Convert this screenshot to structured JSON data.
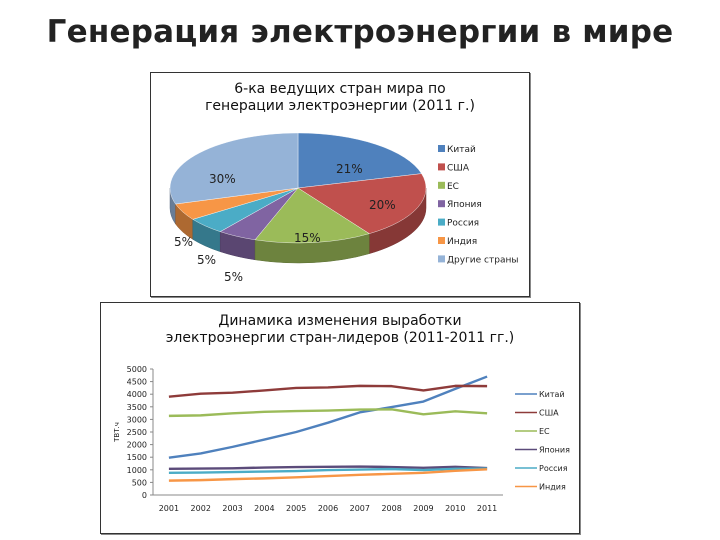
{
  "page": {
    "title": "Генерация электроэнергии в мире"
  },
  "chart_data": [
    {
      "type": "pie",
      "title_lines": [
        "6-ка ведущих стран мира по",
        "генерации электроэнергии (2011 г.)"
      ],
      "categories": [
        "Китай",
        "США",
        "ЕС",
        "Япония",
        "Россия",
        "Индия",
        "Другие страны"
      ],
      "values": [
        21,
        20,
        15,
        5,
        5,
        5,
        30
      ],
      "data_labels": [
        "21%",
        "20%",
        "15%",
        "5%",
        "5%",
        "5%",
        "30%"
      ],
      "colors": [
        "#4f81bd",
        "#c0504d",
        "#9bbb59",
        "#8064a2",
        "#4bacc6",
        "#f79646",
        "#95b3d7"
      ],
      "legend_position": "right",
      "style": "3d"
    },
    {
      "type": "line",
      "title_lines": [
        "Динамика изменения выработки",
        "электроэнергии  стран-лидеров (2011-2011 гг.)"
      ],
      "ylabel": "ТВТ.ч",
      "x": [
        "2001",
        "2002",
        "2003",
        "2004",
        "2005",
        "2006",
        "2007",
        "2008",
        "2009",
        "2010",
        "2011"
      ],
      "ylim": [
        0,
        5000
      ],
      "yticks": [
        "0",
        "500",
        "1000",
        "1500",
        "2000",
        "2500",
        "3000",
        "3500",
        "4000",
        "4500",
        "5000"
      ],
      "legend_position": "right",
      "series": [
        {
          "name": "Китай",
          "color": "#4f81bd",
          "values": [
            1480,
            1650,
            1910,
            2200,
            2500,
            2870,
            3280,
            3490,
            3710,
            4210,
            4700
          ]
        },
        {
          "name": "США",
          "color": "#8e3b3a",
          "values": [
            3900,
            4020,
            4060,
            4150,
            4250,
            4270,
            4330,
            4320,
            4150,
            4330,
            4320
          ]
        },
        {
          "name": "ЕС",
          "color": "#9bbb59",
          "values": [
            3140,
            3160,
            3240,
            3300,
            3330,
            3350,
            3390,
            3400,
            3200,
            3320,
            3240
          ]
        },
        {
          "name": "Япония",
          "color": "#5b4b7a",
          "values": [
            1040,
            1050,
            1060,
            1090,
            1110,
            1120,
            1130,
            1110,
            1080,
            1120,
            1070
          ]
        },
        {
          "name": "Россия",
          "color": "#4bacc6",
          "values": [
            880,
            890,
            910,
            930,
            950,
            990,
            1010,
            1030,
            990,
            1040,
            1050
          ]
        },
        {
          "name": "Индия",
          "color": "#f79646",
          "values": [
            570,
            590,
            630,
            660,
            700,
            750,
            800,
            840,
            880,
            960,
            1020
          ]
        }
      ]
    }
  ]
}
